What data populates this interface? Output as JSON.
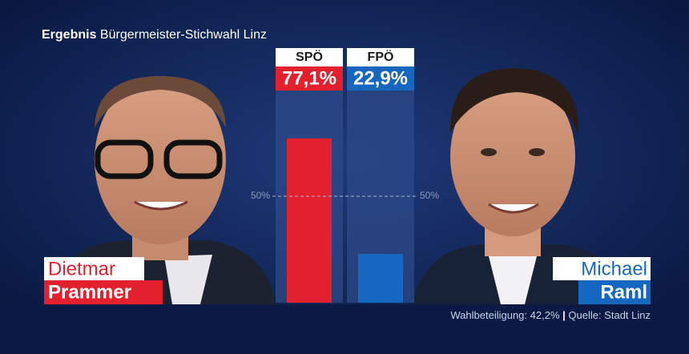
{
  "chart_data": {
    "type": "bar",
    "title_bold": "Ergebnis",
    "title": "Bürgermeister-Stichwahl Linz",
    "categories": [
      "SPÖ",
      "FPÖ"
    ],
    "values": [
      77.1,
      22.9
    ],
    "value_labels": [
      "77,1%",
      "22,9%"
    ],
    "colors": [
      "#e3202e",
      "#1667c0"
    ],
    "ylim": [
      0,
      100
    ],
    "reference_line": {
      "value": 50,
      "label": "50%"
    }
  },
  "candidates": [
    {
      "first": "Dietmar",
      "last": "Prammer"
    },
    {
      "first": "Michael",
      "last": "Raml"
    }
  ],
  "footer": {
    "turnout": "Wahlbeteiligung: 42,2%",
    "source": "Quelle: Stadt Linz"
  }
}
